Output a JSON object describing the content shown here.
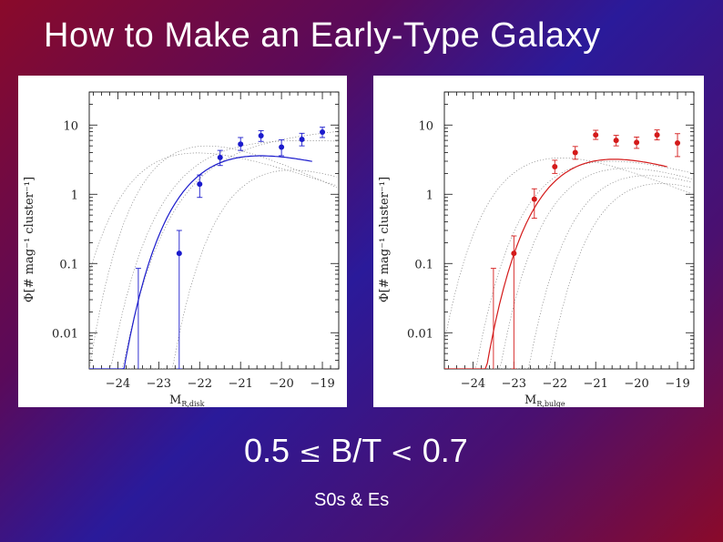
{
  "slide": {
    "title": "How to Make an Early-Type Galaxy",
    "formula": {
      "lower": "0.5",
      "le": "≤",
      "ratio": "B/T",
      "lt": "<",
      "upper": "0.7"
    },
    "subtitle": "S0s & Es"
  },
  "chart_data": [
    {
      "type": "scatter",
      "ylabel": "Φ[# mag⁻¹ cluster⁻¹]",
      "xlabel": "M_R,disk",
      "xlim": [
        -24.7,
        -18.6
      ],
      "ylim": [
        0.003,
        30
      ],
      "yscale": "log",
      "x_ticks": [
        "-24",
        "-23",
        "-22",
        "-21",
        "-20",
        "-19"
      ],
      "y_ticks": [
        "0.01",
        "0.1",
        "1",
        "10"
      ],
      "color": "#1a1acc",
      "points": [
        {
          "x": -23.5,
          "y": 0.003,
          "err_lo": 0.003,
          "err_hi": 0.085
        },
        {
          "x": -22.5,
          "y": 0.14,
          "err_lo": 0.003,
          "err_hi": 0.3
        },
        {
          "x": -22.0,
          "y": 1.4,
          "err_lo": 0.9,
          "err_hi": 1.9
        },
        {
          "x": -21.5,
          "y": 3.4,
          "err_lo": 2.6,
          "err_hi": 4.3
        },
        {
          "x": -21.0,
          "y": 5.3,
          "err_lo": 4.3,
          "err_hi": 6.6
        },
        {
          "x": -20.5,
          "y": 7.0,
          "err_lo": 5.8,
          "err_hi": 8.3
        },
        {
          "x": -20.0,
          "y": 4.8,
          "err_lo": 3.6,
          "err_hi": 6.1
        },
        {
          "x": -19.5,
          "y": 6.2,
          "err_lo": 5.0,
          "err_hi": 7.6
        },
        {
          "x": -19.0,
          "y": 7.9,
          "err_lo": 6.6,
          "err_hi": 9.3
        }
      ],
      "fit": {
        "phistar": 8.4,
        "mstar": -21.5,
        "alpha": -0.6
      }
    },
    {
      "type": "scatter",
      "ylabel": "Φ[# mag⁻¹ cluster⁻¹]",
      "xlabel": "M_R,bulge",
      "xlim": [
        -24.7,
        -18.6
      ],
      "ylim": [
        0.003,
        30
      ],
      "yscale": "log",
      "x_ticks": [
        "-24",
        "-23",
        "-22",
        "-21",
        "-20",
        "-19"
      ],
      "y_ticks": [
        "0.01",
        "0.1",
        "1",
        "10"
      ],
      "color": "#d41a1a",
      "points": [
        {
          "x": -23.5,
          "y": 0.003,
          "err_lo": 0.003,
          "err_hi": 0.085
        },
        {
          "x": -23.0,
          "y": 0.14,
          "err_lo": 0.003,
          "err_hi": 0.25
        },
        {
          "x": -22.5,
          "y": 0.85,
          "err_lo": 0.45,
          "err_hi": 1.2
        },
        {
          "x": -22.0,
          "y": 2.5,
          "err_lo": 2.0,
          "err_hi": 3.1
        },
        {
          "x": -21.5,
          "y": 4.0,
          "err_lo": 3.2,
          "err_hi": 4.9
        },
        {
          "x": -21.0,
          "y": 7.2,
          "err_lo": 6.2,
          "err_hi": 8.4
        },
        {
          "x": -20.5,
          "y": 6.0,
          "err_lo": 5.0,
          "err_hi": 7.1
        },
        {
          "x": -20.0,
          "y": 5.6,
          "err_lo": 4.6,
          "err_hi": 6.7
        },
        {
          "x": -19.5,
          "y": 7.2,
          "err_lo": 6.1,
          "err_hi": 8.5
        },
        {
          "x": -19.0,
          "y": 5.5,
          "err_lo": 3.5,
          "err_hi": 7.5
        }
      ],
      "fit": {
        "phistar": 8.1,
        "mstar": -21.3,
        "alpha": -0.5
      }
    }
  ]
}
